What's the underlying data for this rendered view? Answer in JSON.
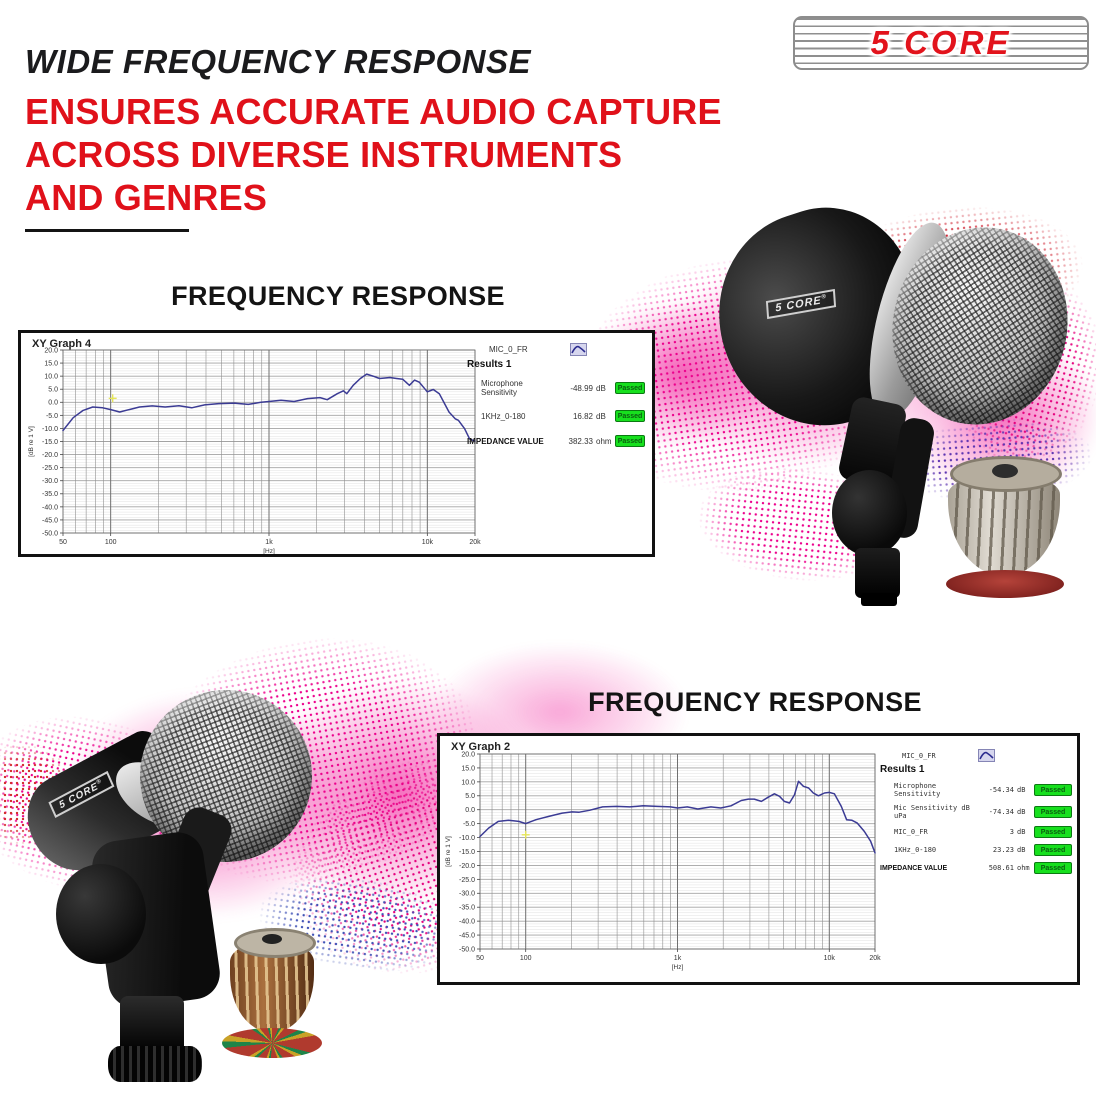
{
  "header": {
    "headline_italic": "WIDE FREQUENCY RESPONSE",
    "headline_red_lines": [
      "ENSURES ACCURATE AUDIO CAPTURE",
      "ACROSS DIVERSE INSTRUMENTS",
      "AND GENRES"
    ]
  },
  "brand": {
    "logo_text": "5 CORE"
  },
  "sections": [
    {
      "title": "FREQUENCY RESPONSE"
    },
    {
      "title": "FREQUENCY RESPONSE"
    }
  ],
  "mic_label": "5 CORE",
  "reg_mark": "®",
  "colors": {
    "accent_red": "#e0111a",
    "curve_navy": "#3b3b94",
    "passed_green": "#17e01e",
    "wave_pink": "#ec008c"
  },
  "chart_data": [
    {
      "type": "line",
      "title": "XY Graph 4",
      "series_label": "MIC_0_FR",
      "icon": "mini-line-chart-icon",
      "results_title": "Results 1",
      "results": [
        {
          "label": "Microphone Sensitivity",
          "value": "-48.99",
          "unit": "dB",
          "status": "Passed",
          "emphasis": false
        },
        {
          "label": "1KHz_0-180",
          "value": "16.82",
          "unit": "dB",
          "status": "Passed",
          "emphasis": false
        },
        {
          "label": "IMPEDANCE VALUE",
          "value": "382.33",
          "unit": "ohm",
          "status": "Passed",
          "emphasis": true
        }
      ],
      "xlabel": "[Hz]",
      "ylabel": "[dB re 1 V]",
      "xscale": "log",
      "xlim": [
        50,
        20000
      ],
      "ylim": [
        -50,
        20
      ],
      "ytick_step": 5,
      "xticks": [
        {
          "v": 50,
          "label": "50"
        },
        {
          "v": 100,
          "label": "100"
        },
        {
          "v": 1000,
          "label": "1k"
        },
        {
          "v": 10000,
          "label": "10k"
        },
        {
          "v": 20000,
          "label": "20k"
        }
      ],
      "grid": true,
      "cursor": {
        "x": 103,
        "y": 1.5
      },
      "x": [
        50,
        58,
        67,
        77,
        89,
        100,
        114,
        131,
        152,
        183,
        221,
        270,
        325,
        392,
        480,
        604,
        740,
        890,
        1000,
        1190,
        1440,
        1750,
        2100,
        2330,
        2700,
        2950,
        3100,
        3400,
        3770,
        4140,
        4530,
        5000,
        5800,
        6400,
        7000,
        7700,
        8300,
        8900,
        10000,
        10900,
        11900,
        12800,
        13700,
        15000,
        15700,
        17200,
        18500,
        20000
      ],
      "y": [
        -10.8,
        -5.9,
        -3.1,
        -1.8,
        -2.1,
        -2.8,
        -3.7,
        -2.8,
        -1.8,
        -1.4,
        -1.8,
        -1.3,
        -2.1,
        -1.0,
        -0.5,
        -0.3,
        -0.8,
        0,
        0.3,
        0.8,
        0.3,
        1.4,
        1.8,
        1.0,
        3.3,
        4.4,
        3.3,
        6.5,
        9.1,
        10.8,
        10.0,
        9.1,
        9.5,
        9.1,
        8.8,
        6.5,
        8.5,
        7.7,
        4.0,
        4.9,
        3.3,
        -0.3,
        -3.7,
        -6.3,
        -6.9,
        -10.1,
        -14.0,
        -14.9
      ]
    },
    {
      "type": "line",
      "title": "XY Graph 2",
      "series_label": "MIC_0_FR",
      "icon": "mini-line-chart-icon",
      "results_title": "Results 1",
      "results": [
        {
          "label": "Microphone Sensitivity",
          "value": "-54.34",
          "unit": "dB",
          "status": "Passed",
          "emphasis": false
        },
        {
          "label": "Mic Sensitivity dB uPa",
          "value": "-74.34",
          "unit": "dB",
          "status": "Passed",
          "emphasis": false
        },
        {
          "label": "MIC_0_FR",
          "value": "3",
          "unit": "dB",
          "status": "Passed",
          "emphasis": false
        },
        {
          "label": "1KHz_0-180",
          "value": "23.23",
          "unit": "dB",
          "status": "Passed",
          "emphasis": false
        },
        {
          "label": "IMPEDANCE VALUE",
          "value": "508.61",
          "unit": "ohm",
          "status": "Passed",
          "emphasis": true
        }
      ],
      "xlabel": "[Hz]",
      "ylabel": "[dB re 1 V]",
      "xscale": "log",
      "xlim": [
        50,
        20000
      ],
      "ylim": [
        -50,
        20
      ],
      "ytick_step": 5,
      "xticks": [
        {
          "v": 50,
          "label": "50"
        },
        {
          "v": 100,
          "label": "100"
        },
        {
          "v": 1000,
          "label": "1k"
        },
        {
          "v": 10000,
          "label": "10k"
        },
        {
          "v": 20000,
          "label": "20k"
        }
      ],
      "grid": true,
      "cursor": {
        "x": 100,
        "y": -9
      },
      "x": [
        50,
        57,
        66,
        77,
        90,
        100,
        117,
        142,
        174,
        202,
        225,
        263,
        321,
        397,
        485,
        594,
        737,
        900,
        1000,
        1160,
        1360,
        1660,
        1930,
        2250,
        2630,
        2930,
        3200,
        3570,
        3960,
        4350,
        4700,
        5050,
        5470,
        5900,
        6270,
        6750,
        7300,
        7850,
        8470,
        9300,
        10000,
        10800,
        12000,
        13000,
        14100,
        15300,
        17000,
        18700,
        20000
      ],
      "y": [
        -9.6,
        -6.6,
        -4.2,
        -3.8,
        -4.2,
        -5.0,
        -3.6,
        -2.4,
        -1.2,
        -0.8,
        -0.9,
        -0.2,
        1.0,
        1.2,
        1.0,
        1.4,
        1.2,
        1.0,
        0.6,
        1.0,
        0.25,
        1.0,
        0.6,
        1.4,
        3.3,
        3.8,
        3.8,
        3.0,
        4.5,
        5.7,
        4.8,
        3.0,
        2.4,
        5.4,
        10.2,
        8.4,
        7.8,
        6.0,
        5.0,
        6.0,
        6.2,
        5.7,
        1.2,
        -3.6,
        -3.8,
        -4.8,
        -7.8,
        -11.3,
        -15.5
      ]
    }
  ]
}
